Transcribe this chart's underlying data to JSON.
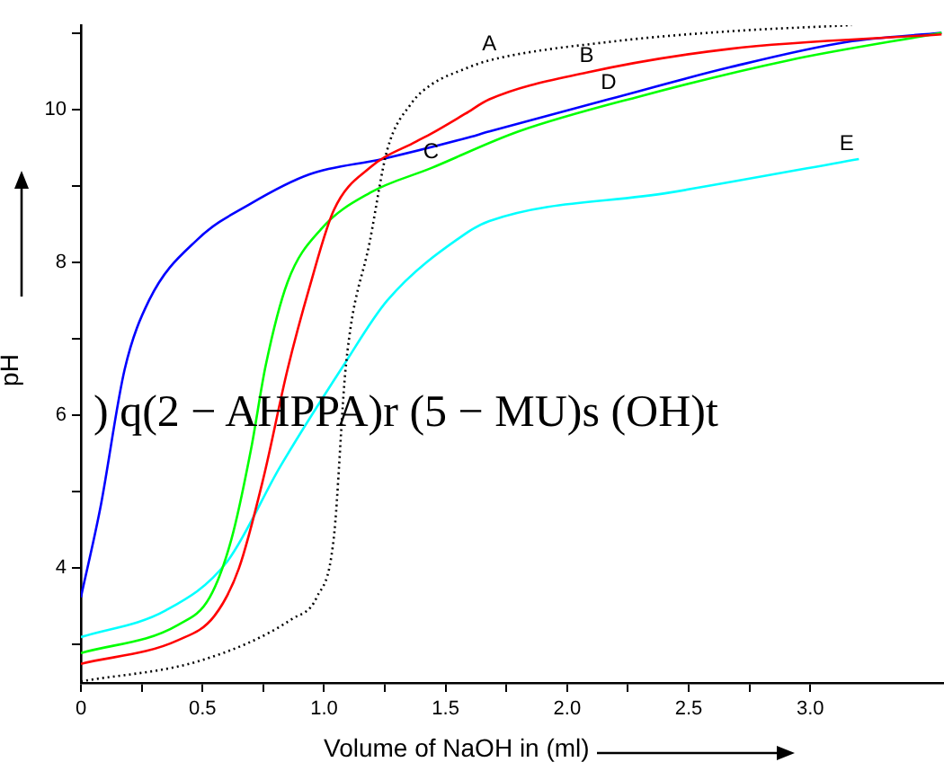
{
  "chart_data": {
    "type": "line",
    "xlabel": "Volume of NaOH in (ml)",
    "ylabel": "pH",
    "annotations": [
      {
        "text": "A",
        "x": 1.68,
        "y": 10.64
      },
      {
        "text": "B",
        "x": 2.08,
        "y": 10.48
      },
      {
        "text": "C",
        "x": 1.44,
        "y": 9.23
      },
      {
        "text": "D",
        "x": 2.17,
        "y": 10.13
      },
      {
        "text": "E",
        "x": 3.15,
        "y": 9.33
      },
      ") q(2 − AHPPA)r (5 − MU)s (OH)t"
    ],
    "xlim": [
      0,
      3.55
    ],
    "xticks": [
      0,
      {
        "value": 0.25,
        "label": null
      },
      0.5,
      {
        "value": 0.75,
        "label": null
      },
      "1.0",
      {
        "value": 1.25,
        "label": null
      },
      1.5,
      {
        "value": 1.75,
        "label": null
      },
      "2.0",
      {
        "value": 2.25,
        "label": null
      },
      2.5,
      {
        "value": 2.75,
        "label": null
      },
      "3.0"
    ],
    "ylim": [
      2.5,
      11.1
    ],
    "yticks": [
      {
        "value": 3,
        "label": null
      },
      4,
      {
        "value": 5,
        "label": null
      },
      6,
      {
        "value": 7,
        "label": null
      },
      8,
      {
        "value": 9,
        "label": null
      },
      10,
      {
        "value": 11,
        "label": null
      }
    ],
    "grid": false,
    "legend": false,
    "marker": "none",
    "series": [
      {
        "color": "#000000",
        "line_style": "dotted",
        "x": [
          0,
          0.5,
          0.87,
          0.97,
          1.04,
          1.09,
          1.19,
          1.26,
          1.36,
          1.44,
          1.58,
          1.68,
          2.17,
          2.67,
          3.17
        ],
        "values": [
          2.52,
          2.8,
          3.34,
          3.62,
          4.39,
          6.65,
          8.3,
          9.47,
          10.08,
          10.32,
          10.53,
          10.64,
          10.88,
          11.02,
          11.1
        ]
      },
      {
        "color": "#ff0000",
        "x": [
          0,
          0.4,
          0.55,
          0.65,
          0.75,
          0.85,
          0.94,
          1.04,
          1.19,
          1.38,
          1.44,
          1.58,
          1.68,
          2.08,
          2.67,
          3.54
        ],
        "values": [
          2.75,
          3.06,
          3.38,
          4.0,
          5.17,
          6.6,
          7.67,
          8.68,
          9.24,
          9.58,
          9.68,
          9.94,
          10.13,
          10.48,
          10.79,
          10.98
        ]
      },
      {
        "color": "#00ff00",
        "x": [
          0,
          0.4,
          0.53,
          0.62,
          0.7,
          0.76,
          0.85,
          0.99,
          1.19,
          1.44,
          1.8,
          2.3,
          2.91,
          3.54
        ],
        "values": [
          2.89,
          3.26,
          3.62,
          4.39,
          5.56,
          6.65,
          7.74,
          8.44,
          8.91,
          9.23,
          9.71,
          10.17,
          10.64,
          11.0
        ]
      },
      {
        "color": "#0000ff",
        "x": [
          0,
          0.08,
          0.18,
          0.28,
          0.48,
          0.7,
          0.94,
          1.24,
          1.58,
          1.68,
          2.17,
          2.67,
          3.15,
          3.54
        ],
        "values": [
          3.62,
          4.79,
          6.6,
          7.5,
          8.3,
          8.77,
          9.15,
          9.35,
          9.62,
          9.71,
          10.13,
          10.55,
          10.88,
          11.0
        ]
      },
      {
        "color": "#00ffff",
        "x": [
          0,
          0.35,
          0.6,
          0.82,
          1.08,
          1.26,
          1.58,
          1.68,
          2.42,
          3.2
        ],
        "values": [
          3.1,
          3.45,
          4.08,
          5.33,
          6.65,
          7.5,
          8.37,
          8.54,
          8.91,
          9.35
        ]
      }
    ]
  }
}
